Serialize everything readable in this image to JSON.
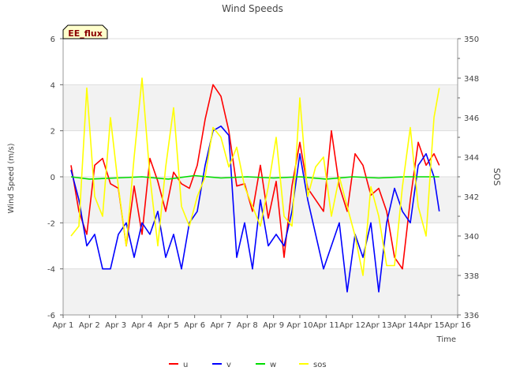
{
  "chart_data": {
    "type": "line",
    "title": "Wind Speeds",
    "xlabel": "Time",
    "ylabel": "Wind Speed (m/s)",
    "y2label": "SOS",
    "site_label": "EE_flux",
    "xlim": [
      1,
      16
    ],
    "ylim": [
      -6,
      6
    ],
    "y2lim": [
      336,
      350
    ],
    "x_ticks": [
      1,
      2,
      3,
      4,
      5,
      6,
      7,
      8,
      9,
      10,
      11,
      12,
      13,
      14,
      15,
      16
    ],
    "x_tick_labels": [
      "Apr 1",
      "Apr 2",
      "Apr 3",
      "Apr 4",
      "Apr 5",
      "Apr 6",
      "Apr 7",
      "Apr 8",
      "Apr 9",
      "Apr 10",
      "Apr 11",
      "Apr 12",
      "Apr 13",
      "Apr 14",
      "Apr 15",
      "Apr 16"
    ],
    "y_ticks": [
      -6,
      -4,
      -2,
      0,
      2,
      4,
      6
    ],
    "y_tick_labels": [
      "-6",
      "-4",
      "-2",
      "0",
      "2",
      "4",
      "6"
    ],
    "y2_ticks": [
      336,
      338,
      340,
      342,
      344,
      346,
      348,
      350
    ],
    "y2_tick_labels": [
      "336",
      "338",
      "340",
      "342",
      "344",
      "346",
      "348",
      "350"
    ],
    "legend_position": "bottom-center",
    "series": [
      {
        "name": "u",
        "color": "#ff0000",
        "axis": "left",
        "x": [
          1.3,
          1.6,
          1.9,
          2.2,
          2.5,
          2.8,
          3.1,
          3.4,
          3.7,
          4.0,
          4.3,
          4.6,
          4.9,
          5.2,
          5.5,
          5.8,
          6.1,
          6.4,
          6.7,
          7.0,
          7.3,
          7.6,
          7.9,
          8.2,
          8.5,
          8.8,
          9.1,
          9.4,
          9.7,
          10.0,
          10.3,
          10.6,
          10.9,
          11.2,
          11.5,
          11.8,
          12.1,
          12.4,
          12.7,
          13.0,
          13.3,
          13.6,
          13.9,
          14.2,
          14.5,
          14.8,
          15.1,
          15.3
        ],
        "y": [
          0.5,
          -1.5,
          -2.5,
          0.5,
          0.8,
          -0.3,
          -0.5,
          -3.0,
          -0.4,
          -2.5,
          0.8,
          -0.2,
          -1.5,
          0.2,
          -0.3,
          -0.5,
          0.5,
          2.5,
          4.0,
          3.5,
          2.0,
          -0.4,
          -0.3,
          -1.5,
          0.5,
          -1.8,
          -0.2,
          -3.5,
          -0.4,
          1.5,
          -0.5,
          -1.0,
          -1.5,
          2.0,
          -0.4,
          -1.5,
          1.0,
          0.5,
          -0.8,
          -0.5,
          -1.5,
          -3.5,
          -4.0,
          -1.0,
          1.5,
          0.5,
          1.0,
          0.5
        ]
      },
      {
        "name": "v",
        "color": "#0000ff",
        "axis": "left",
        "x": [
          1.3,
          1.6,
          1.9,
          2.2,
          2.5,
          2.8,
          3.1,
          3.4,
          3.7,
          4.0,
          4.3,
          4.6,
          4.9,
          5.2,
          5.5,
          5.8,
          6.1,
          6.4,
          6.7,
          7.0,
          7.3,
          7.6,
          7.9,
          8.2,
          8.5,
          8.8,
          9.1,
          9.4,
          9.7,
          10.0,
          10.3,
          10.6,
          10.9,
          11.2,
          11.5,
          11.8,
          12.1,
          12.4,
          12.7,
          13.0,
          13.3,
          13.6,
          13.9,
          14.2,
          14.5,
          14.8,
          15.1,
          15.3
        ],
        "y": [
          0.3,
          -1.0,
          -3.0,
          -2.5,
          -4.0,
          -4.0,
          -2.5,
          -2.0,
          -3.5,
          -2.0,
          -2.5,
          -1.5,
          -3.5,
          -2.5,
          -4.0,
          -2.0,
          -1.5,
          0.5,
          2.0,
          2.2,
          1.8,
          -3.5,
          -2.0,
          -4.0,
          -1.0,
          -3.0,
          -2.5,
          -3.0,
          -1.5,
          1.0,
          -1.0,
          -2.5,
          -4.0,
          -3.0,
          -2.0,
          -5.0,
          -2.5,
          -3.5,
          -2.0,
          -5.0,
          -2.0,
          -0.5,
          -1.5,
          -2.0,
          0.5,
          1.0,
          0.0,
          -1.5
        ]
      },
      {
        "name": "w",
        "color": "#00dd00",
        "axis": "left",
        "x": [
          1.3,
          2.0,
          3.0,
          4.0,
          5.0,
          6.0,
          7.0,
          8.0,
          9.0,
          10.0,
          11.0,
          12.0,
          13.0,
          14.0,
          15.0,
          15.3
        ],
        "y": [
          0.0,
          -0.1,
          -0.05,
          0.0,
          -0.1,
          0.05,
          -0.05,
          0.0,
          -0.05,
          0.0,
          -0.1,
          0.0,
          -0.05,
          0.0,
          0.0,
          0.0
        ]
      },
      {
        "name": "sos",
        "color": "#ffff00",
        "axis": "right",
        "x": [
          1.3,
          1.6,
          1.9,
          2.2,
          2.5,
          2.8,
          3.1,
          3.4,
          3.7,
          4.0,
          4.3,
          4.6,
          4.9,
          5.2,
          5.5,
          5.8,
          6.1,
          6.4,
          6.7,
          7.0,
          7.3,
          7.6,
          7.9,
          8.2,
          8.5,
          8.8,
          9.1,
          9.4,
          9.7,
          10.0,
          10.3,
          10.6,
          10.9,
          11.2,
          11.5,
          11.8,
          12.1,
          12.4,
          12.7,
          13.0,
          13.3,
          13.6,
          13.9,
          14.2,
          14.5,
          14.8,
          15.1,
          15.3
        ],
        "y": [
          340,
          340.5,
          347.5,
          342.0,
          341.0,
          346.0,
          342.5,
          339.5,
          344.0,
          348.0,
          343.0,
          339.5,
          343.5,
          346.5,
          341.5,
          340.5,
          342.0,
          343.0,
          345.5,
          345.0,
          343.5,
          344.5,
          342.5,
          341.5,
          340.5,
          342.5,
          345.0,
          341.0,
          340.5,
          347.0,
          342.0,
          343.5,
          344.0,
          341.0,
          343.0,
          341.5,
          340.0,
          338.0,
          342.5,
          341.0,
          338.5,
          338.5,
          342.5,
          345.5,
          341.5,
          340.0,
          346.0,
          347.5
        ]
      }
    ]
  }
}
